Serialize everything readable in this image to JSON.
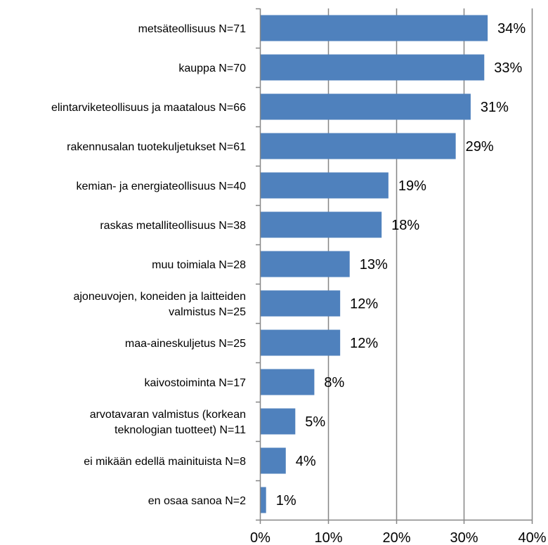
{
  "chart_data": {
    "type": "bar",
    "orientation": "horizontal",
    "categories": [
      "metsäteollisuus N=71",
      "kauppa N=70",
      "elintarviketeollisuus ja maatalous N=66",
      "rakennusalan tuotekuljetukset N=61",
      "kemian- ja energiateollisuus N=40",
      "raskas metalliteollisuus N=38",
      "muu toimiala N=28",
      "ajoneuvojen, koneiden ja laitteiden valmistus N=25",
      "maa-aineskuljetus N=25",
      "kaivostoiminta N=17",
      "arvotavaran valmistus (korkean teknologian tuotteet) N=11",
      "ei mikään edellä mainituista N=8",
      "en osaa sanoa N=2"
    ],
    "category_lines": [
      [
        "metsäteollisuus N=71"
      ],
      [
        "kauppa N=70"
      ],
      [
        "elintarviketeollisuus ja maatalous N=66"
      ],
      [
        "rakennusalan tuotekuljetukset N=61"
      ],
      [
        "kemian- ja energiateollisuus N=40"
      ],
      [
        "raskas metalliteollisuus N=38"
      ],
      [
        "muu toimiala N=28"
      ],
      [
        "ajoneuvojen, koneiden ja laitteiden",
        "valmistus N=25"
      ],
      [
        "maa-aineskuljetus N=25"
      ],
      [
        "kaivostoiminta N=17"
      ],
      [
        "arvotavaran valmistus (korkean",
        "teknologian tuotteet) N=11"
      ],
      [
        "ei mikään edellä mainituista N=8"
      ],
      [
        "en osaa sanoa N=2"
      ]
    ],
    "values": [
      33.5,
      33,
      31,
      28.8,
      18.9,
      17.9,
      13.2,
      11.8,
      11.8,
      8,
      5.2,
      3.8,
      0.9
    ],
    "value_labels": [
      "34%",
      "33%",
      "31%",
      "29%",
      "19%",
      "18%",
      "13%",
      "12%",
      "12%",
      "8%",
      "5%",
      "4%",
      "1%"
    ],
    "xlim": [
      0,
      40
    ],
    "x_ticks": [
      0,
      10,
      20,
      30,
      40
    ],
    "x_tick_labels": [
      "0%",
      "10%",
      "20%",
      "30%",
      "40%"
    ],
    "grid": "vertical",
    "bar_color": "#4f81bd",
    "grid_color": "#868686",
    "title": "",
    "xlabel": "",
    "ylabel": ""
  }
}
